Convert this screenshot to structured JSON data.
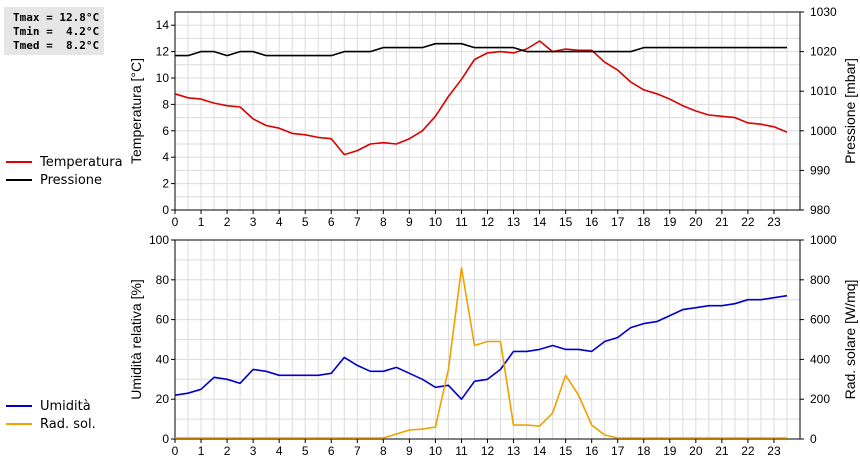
{
  "stats": {
    "tmax": "Tmax = 12.8°C",
    "tmin": "Tmin =  4.2°C",
    "tmed": "Tmed =  8.2°C"
  },
  "chart_data": [
    {
      "type": "line",
      "ylabel": "Temperatura [°C]",
      "y2label": "Pressione [mbar]",
      "xlim": [
        0,
        24
      ],
      "xticks": [
        "0",
        "1",
        "2",
        "3",
        "4",
        "5",
        "6",
        "7",
        "8",
        "9",
        "10",
        "11",
        "12",
        "13",
        "14",
        "15",
        "16",
        "17",
        "18",
        "19",
        "20",
        "21",
        "22",
        "23"
      ],
      "ylim": [
        0,
        15
      ],
      "yticks": [
        0,
        2,
        4,
        6,
        8,
        10,
        12,
        14
      ],
      "y2lim": [
        980,
        1030
      ],
      "y2ticks": [
        980,
        990,
        1000,
        1010,
        1020,
        1030
      ],
      "grid": true,
      "series": [
        {
          "name": "Temperatura",
          "color": "#dd0000",
          "axis": "left",
          "x": [
            0,
            0.5,
            1,
            1.5,
            2,
            2.5,
            3,
            3.5,
            4,
            4.5,
            5,
            5.5,
            6,
            6.5,
            7,
            7.5,
            8,
            8.5,
            9,
            9.5,
            10,
            10.5,
            11,
            11.5,
            12,
            12.5,
            13,
            13.5,
            14,
            14.5,
            15,
            15.5,
            16,
            16.5,
            17,
            17.5,
            18,
            18.5,
            19,
            19.5,
            20,
            20.5,
            21,
            21.5,
            22,
            22.5,
            23,
            23.5
          ],
          "values": [
            8.8,
            8.5,
            8.4,
            8.1,
            7.9,
            7.8,
            6.9,
            6.4,
            6.2,
            5.8,
            5.7,
            5.5,
            5.4,
            4.2,
            4.5,
            5.0,
            5.1,
            5.0,
            5.4,
            6.0,
            7.1,
            8.6,
            9.9,
            11.4,
            11.9,
            12.0,
            11.9,
            12.2,
            12.8,
            12.0,
            12.2,
            12.1,
            12.1,
            11.2,
            10.6,
            9.7,
            9.1,
            8.8,
            8.4,
            7.9,
            7.5,
            7.2,
            7.1,
            7.0,
            6.6,
            6.5,
            6.3,
            5.9
          ]
        },
        {
          "name": "Pressione",
          "color": "#000000",
          "axis": "right",
          "x": [
            0,
            0.5,
            1,
            1.5,
            2,
            2.5,
            3,
            3.5,
            4,
            4.5,
            5,
            5.5,
            6,
            6.5,
            7,
            7.5,
            8,
            8.5,
            9,
            9.5,
            10,
            10.5,
            11,
            11.5,
            12,
            12.5,
            13,
            13.5,
            14,
            14.5,
            15,
            15.5,
            16,
            16.5,
            17,
            17.5,
            18,
            18.5,
            19,
            19.5,
            20,
            20.5,
            21,
            21.5,
            22,
            22.5,
            23,
            23.5
          ],
          "values": [
            1019,
            1019,
            1020,
            1020,
            1019,
            1020,
            1020,
            1019,
            1019,
            1019,
            1019,
            1019,
            1019,
            1020,
            1020,
            1020,
            1021,
            1021,
            1021,
            1021,
            1022,
            1022,
            1022,
            1021,
            1021,
            1021,
            1021,
            1020,
            1020,
            1020,
            1020,
            1020,
            1020,
            1020,
            1020,
            1020,
            1021,
            1021,
            1021,
            1021,
            1021,
            1021,
            1021,
            1021,
            1021,
            1021,
            1021,
            1021
          ]
        }
      ]
    },
    {
      "type": "line",
      "ylabel": "Umidità relativa [%]",
      "y2label": "Rad. solare [W/mq]",
      "xlim": [
        0,
        24
      ],
      "xticks": [
        "0",
        "1",
        "2",
        "3",
        "4",
        "5",
        "6",
        "7",
        "8",
        "9",
        "10",
        "11",
        "12",
        "13",
        "14",
        "15",
        "16",
        "17",
        "18",
        "19",
        "20",
        "21",
        "22",
        "23"
      ],
      "ylim": [
        0,
        100
      ],
      "yticks": [
        0,
        20,
        40,
        60,
        80,
        100
      ],
      "y2lim": [
        0,
        1000
      ],
      "y2ticks": [
        0,
        200,
        400,
        600,
        800,
        1000
      ],
      "grid": true,
      "series": [
        {
          "name": "Umidità",
          "color": "#0000cc",
          "axis": "left",
          "x": [
            0,
            0.5,
            1,
            1.5,
            2,
            2.5,
            3,
            3.5,
            4,
            4.5,
            5,
            5.5,
            6,
            6.5,
            7,
            7.5,
            8,
            8.5,
            9,
            9.5,
            10,
            10.5,
            11,
            11.5,
            12,
            12.5,
            13,
            13.5,
            14,
            14.5,
            15,
            15.5,
            16,
            16.5,
            17,
            17.5,
            18,
            18.5,
            19,
            19.5,
            20,
            20.5,
            21,
            21.5,
            22,
            22.5,
            23,
            23.5
          ],
          "values": [
            22,
            23,
            25,
            31,
            30,
            28,
            35,
            34,
            32,
            32,
            32,
            32,
            33,
            41,
            37,
            34,
            34,
            36,
            33,
            30,
            26,
            27,
            20,
            29,
            30,
            35,
            44,
            44,
            45,
            47,
            45,
            45,
            44,
            49,
            51,
            56,
            58,
            59,
            62,
            65,
            66,
            67,
            67,
            68,
            70,
            70,
            71,
            72
          ]
        },
        {
          "name": "Rad. sol.",
          "color": "#f0a000",
          "axis": "right",
          "x": [
            0,
            0.5,
            1,
            1.5,
            2,
            2.5,
            3,
            3.5,
            4,
            4.5,
            5,
            5.5,
            6,
            6.5,
            7,
            7.5,
            8,
            8.5,
            9,
            9.5,
            10,
            10.5,
            11,
            11.5,
            12,
            12.5,
            13,
            13.5,
            14,
            14.5,
            15,
            15.5,
            16,
            16.5,
            17,
            17.5,
            18,
            18.5,
            19,
            19.5,
            20,
            20.5,
            21,
            21.5,
            22,
            22.5,
            23,
            23.5
          ],
          "values": [
            5,
            5,
            5,
            5,
            5,
            5,
            5,
            5,
            5,
            5,
            5,
            5,
            5,
            5,
            5,
            5,
            5,
            25,
            45,
            50,
            60,
            350,
            860,
            470,
            490,
            490,
            70,
            70,
            65,
            130,
            320,
            220,
            70,
            20,
            5,
            5,
            5,
            5,
            5,
            5,
            5,
            5,
            5,
            5,
            5,
            5,
            5,
            5
          ]
        }
      ]
    }
  ]
}
